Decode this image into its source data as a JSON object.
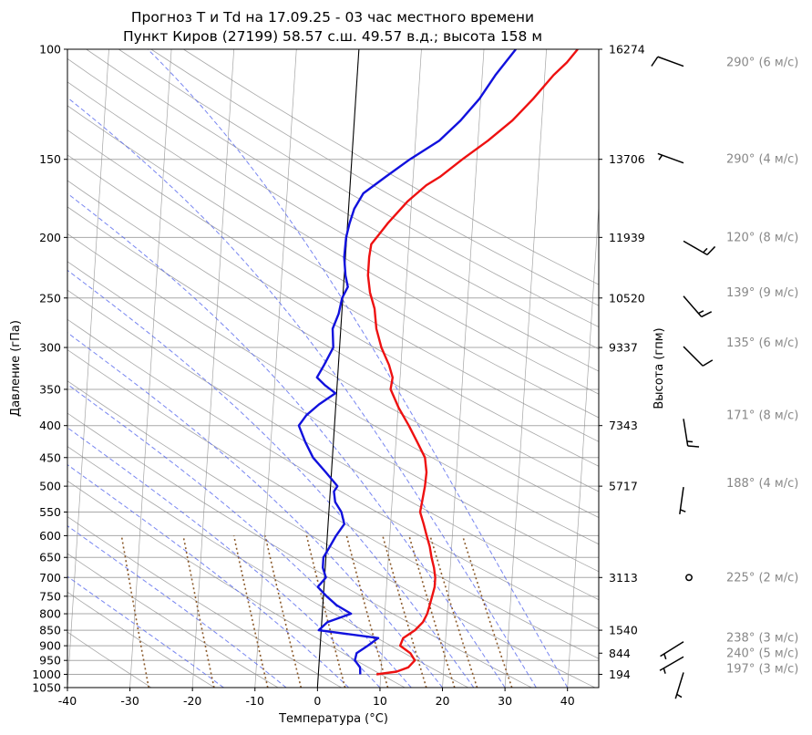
{
  "chart_data": {
    "type": "line",
    "title": "Прогноз T и Td на 17.09.25 - 03 час местного времени",
    "subtitle": "Пункт Киров (27199) 58.57 с.ш. 49.57 в.д.; высота 158 м",
    "xlabel": "Температура (°C)",
    "ylabel": "Давление (гПа)",
    "ylabel_right": "Высота (гпм)",
    "xlim": [
      -40,
      45
    ],
    "ylim": [
      1050,
      100
    ],
    "y_scale": "log",
    "x_ticks": [
      -40,
      -30,
      -20,
      -10,
      0,
      10,
      20,
      30,
      40
    ],
    "p_ticks": [
      100,
      150,
      200,
      250,
      300,
      350,
      400,
      450,
      500,
      550,
      600,
      650,
      700,
      750,
      800,
      850,
      900,
      950,
      1000,
      1050
    ],
    "heights": [
      {
        "p": 100,
        "h": "16274"
      },
      {
        "p": 150,
        "h": "13706"
      },
      {
        "p": 200,
        "h": "11939"
      },
      {
        "p": 250,
        "h": "10520"
      },
      {
        "p": 300,
        "h": "9337"
      },
      {
        "p": 400,
        "h": "7343"
      },
      {
        "p": 500,
        "h": "5717"
      },
      {
        "p": 700,
        "h": "3113"
      },
      {
        "p": 850,
        "h": "1540"
      },
      {
        "p": 925,
        "h": "844"
      },
      {
        "p": 1000,
        "h": "194"
      }
    ],
    "series": [
      {
        "key": "T",
        "color": "#ee1111",
        "points": [
          [
            1000,
            9.3
          ],
          [
            990,
            12.5
          ],
          [
            975,
            14.3
          ],
          [
            950,
            15.3
          ],
          [
            925,
            14.5
          ],
          [
            900,
            12.8
          ],
          [
            875,
            13.2
          ],
          [
            850,
            15.0
          ],
          [
            825,
            16.2
          ],
          [
            800,
            16.8
          ],
          [
            775,
            17.1
          ],
          [
            750,
            17.4
          ],
          [
            725,
            17.7
          ],
          [
            700,
            17.7
          ],
          [
            675,
            17.4
          ],
          [
            650,
            16.9
          ],
          [
            625,
            16.5
          ],
          [
            600,
            15.9
          ],
          [
            575,
            15.3
          ],
          [
            550,
            14.6
          ],
          [
            530,
            14.8
          ],
          [
            500,
            15.1
          ],
          [
            475,
            15.2
          ],
          [
            450,
            14.8
          ],
          [
            425,
            13.4
          ],
          [
            400,
            11.9
          ],
          [
            375,
            10.1
          ],
          [
            350,
            8.6
          ],
          [
            335,
            8.8
          ],
          [
            320,
            8.1
          ],
          [
            300,
            6.7
          ],
          [
            280,
            5.7
          ],
          [
            260,
            5.2
          ],
          [
            245,
            4.3
          ],
          [
            230,
            3.8
          ],
          [
            215,
            3.8
          ],
          [
            205,
            4.0
          ],
          [
            200,
            4.8
          ],
          [
            190,
            6.4
          ],
          [
            175,
            9.4
          ],
          [
            165,
            12.2
          ],
          [
            160,
            14.3
          ],
          [
            150,
            17.7
          ],
          [
            140,
            21.6
          ],
          [
            130,
            25.3
          ],
          [
            120,
            28.4
          ],
          [
            110,
            31.4
          ],
          [
            105,
            33.4
          ],
          [
            100,
            35.0
          ]
        ]
      },
      {
        "key": "Td",
        "color": "#1111dd",
        "points": [
          [
            1000,
            6.7
          ],
          [
            975,
            6.6
          ],
          [
            950,
            5.7
          ],
          [
            925,
            5.9
          ],
          [
            900,
            7.6
          ],
          [
            875,
            9.2
          ],
          [
            850,
            -0.4
          ],
          [
            825,
            0.9
          ],
          [
            800,
            4.6
          ],
          [
            775,
            2.2
          ],
          [
            750,
            0.5
          ],
          [
            725,
            -1.0
          ],
          [
            700,
            0.2
          ],
          [
            675,
            -0.4
          ],
          [
            650,
            -0.4
          ],
          [
            625,
            0.5
          ],
          [
            600,
            1.4
          ],
          [
            575,
            2.6
          ],
          [
            550,
            2.0
          ],
          [
            530,
            0.9
          ],
          [
            510,
            0.6
          ],
          [
            500,
            1.1
          ],
          [
            475,
            -0.9
          ],
          [
            450,
            -3.1
          ],
          [
            425,
            -4.5
          ],
          [
            400,
            -5.7
          ],
          [
            385,
            -4.6
          ],
          [
            370,
            -2.7
          ],
          [
            355,
            -0.2
          ],
          [
            345,
            -1.9
          ],
          [
            335,
            -3.3
          ],
          [
            320,
            -2.3
          ],
          [
            300,
            -1.0
          ],
          [
            280,
            -1.3
          ],
          [
            265,
            -0.5
          ],
          [
            250,
            -0.1
          ],
          [
            240,
            0.7
          ],
          [
            230,
            0.2
          ],
          [
            215,
            -0.2
          ],
          [
            200,
            -0.1
          ],
          [
            190,
            0.3
          ],
          [
            180,
            0.9
          ],
          [
            170,
            2.2
          ],
          [
            160,
            5.6
          ],
          [
            150,
            9.3
          ],
          [
            140,
            13.8
          ],
          [
            130,
            17.0
          ],
          [
            120,
            19.8
          ],
          [
            110,
            22.1
          ],
          [
            100,
            25.1
          ]
        ]
      }
    ],
    "winds": [
      {
        "p": 105,
        "label": "290° (6 м/с)",
        "dir": 290,
        "spd": 6
      },
      {
        "p": 150,
        "label": "290° (4 м/с)",
        "dir": 290,
        "spd": 4
      },
      {
        "p": 200,
        "label": "120° (8 м/с)",
        "dir": 120,
        "spd": 8
      },
      {
        "p": 245,
        "label": "139° (9 м/с)",
        "dir": 139,
        "spd": 9
      },
      {
        "p": 295,
        "label": "135° (6 м/с)",
        "dir": 135,
        "spd": 6
      },
      {
        "p": 385,
        "label": "171° (8 м/с)",
        "dir": 171,
        "spd": 8
      },
      {
        "p": 495,
        "label": "188° (4 м/с)",
        "dir": 188,
        "spd": 4
      },
      {
        "p": 700,
        "label": "225° (2 м/с)",
        "dir": 225,
        "spd": 2
      },
      {
        "p": 875,
        "label": "238° (3 м/с)",
        "dir": 238,
        "spd": 3
      },
      {
        "p": 925,
        "label": "240° (5 м/с)",
        "dir": 240,
        "spd": 5
      },
      {
        "p": 980,
        "label": "197° (3 м/с)",
        "dir": 197,
        "spd": 3
      }
    ],
    "colors": {
      "isotherm": "#888888",
      "dry_adiabat": "#888888",
      "moist_adiabat": "#5566ee",
      "mixing_ratio": "#8b5a2b",
      "zero_isotherm": "#000000",
      "wind_label": "#888888"
    }
  }
}
